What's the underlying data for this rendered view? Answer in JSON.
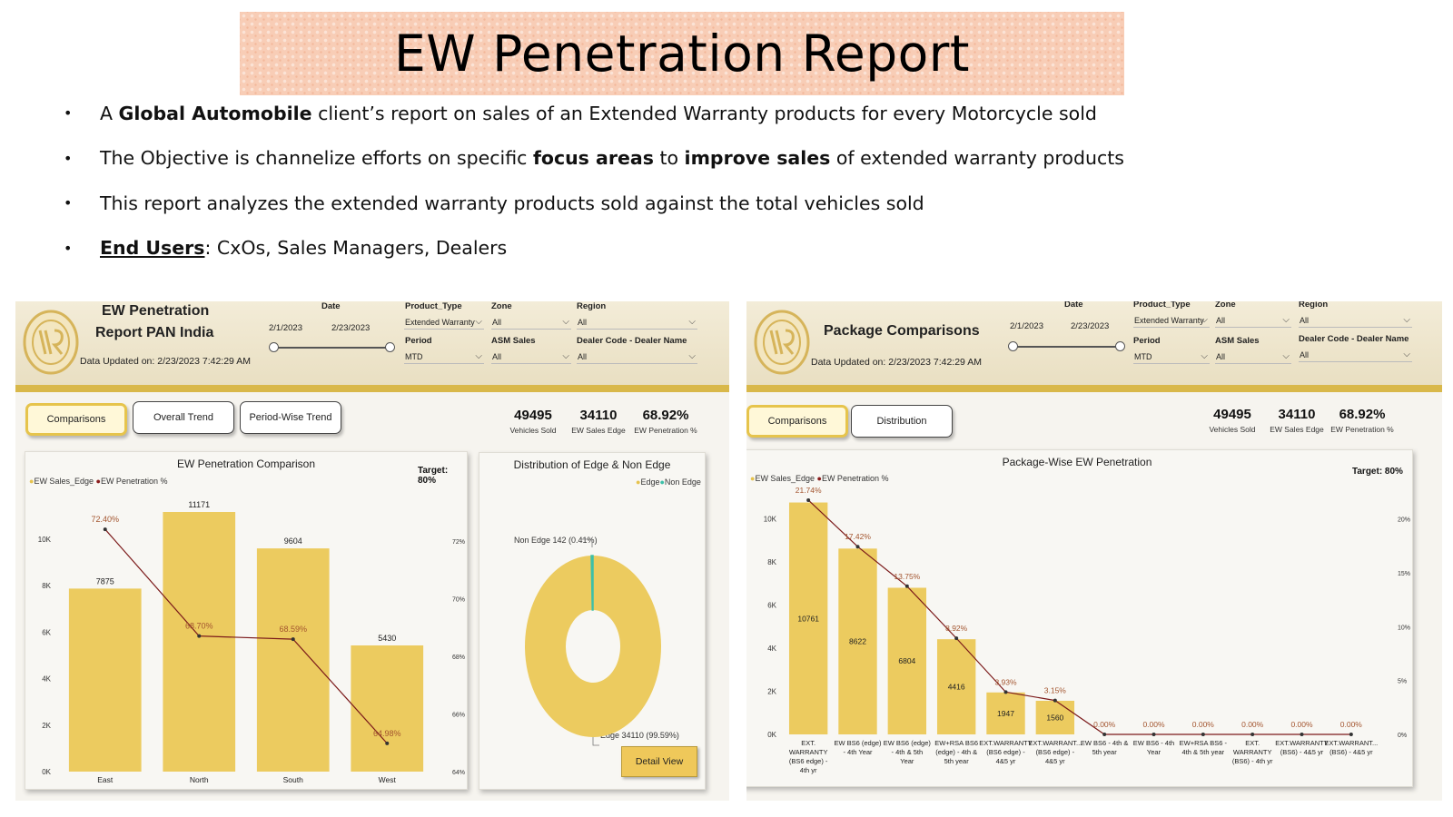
{
  "slide": {
    "title": "EW Penetration Report",
    "bullets": [
      {
        "pre": "A ",
        "bold1": "Global Automobile",
        "mid": " client’s report on sales of an Extended Warranty products for every Motorcycle sold",
        "bold2": "",
        "post": ""
      },
      {
        "pre": "The Objective is channelize efforts on specific ",
        "bold1": "focus areas",
        "mid": " to ",
        "bold2": "improve sales",
        "post": " of extended warranty products"
      },
      {
        "pre": "This report analyzes the extended warranty products sold against the total vehicles sold",
        "bold1": "",
        "mid": "",
        "bold2": "",
        "post": ""
      }
    ],
    "end_users_label": "End Users",
    "end_users_text": ": CxOs, Sales Managers, Dealers"
  },
  "filters": {
    "date_label": "Date",
    "date_start": "2/1/2023",
    "date_end": "2/23/2023",
    "product_type_label": "Product_Type",
    "product_type_value": "Extended Warranty",
    "zone_label": "Zone",
    "zone_value": "All",
    "region_label": "Region",
    "region_value": "All",
    "period_label": "Period",
    "period_value": "MTD",
    "asm_label": "ASM Sales",
    "asm_value": "All",
    "dealer_label": "Dealer Code - Dealer Name",
    "dealer_value": "All"
  },
  "left_dashboard": {
    "title_line1": "EW Penetration",
    "title_line2": "Report PAN India",
    "data_updated": "Data Updated on:  2/23/2023 7:42:29 AM",
    "tabs": [
      "Comparisons",
      "Overall Trend",
      "Period-Wise Trend"
    ],
    "kpis": [
      {
        "value": "49495",
        "label": "Vehicles Sold"
      },
      {
        "value": "34110",
        "label": "EW Sales Edge"
      },
      {
        "value": "68.92%",
        "label": "EW Penetration %"
      }
    ],
    "bar_title": "EW Penetration Comparison",
    "legend_bar": "EW Sales_Edge",
    "legend_line": "EW Penetration %",
    "target": "Target: 80%",
    "donut_title": "Distribution of Edge & Non Edge",
    "donut_legend_1": "Edge",
    "donut_legend_2": "Non Edge",
    "donut_label_nonedge": "Non Edge 142 (0.41%)",
    "donut_label_edge": "Edge 34110 (99.59%)",
    "detail_button": "Detail View"
  },
  "right_dashboard": {
    "title": "Package Comparisons",
    "data_updated": "Data Updated on:  2/23/2023 7:42:29 AM",
    "tabs": [
      "Comparisons",
      "Distribution"
    ],
    "kpis": [
      {
        "value": "49495",
        "label": "Vehicles Sold"
      },
      {
        "value": "34110",
        "label": "EW Sales Edge"
      },
      {
        "value": "68.92%",
        "label": "EW Penetration %"
      }
    ],
    "chart_title": "Package-Wise EW Penetration",
    "legend_bar": "EW Sales_Edge",
    "legend_line": "EW Penetration %",
    "target": "Target: 80%"
  },
  "chart_data": [
    {
      "type": "bar",
      "title": "EW Penetration Comparison",
      "categories": [
        "East",
        "North",
        "South",
        "West"
      ],
      "series": [
        {
          "name": "EW Sales_Edge",
          "values": [
            7875,
            11171,
            9604,
            5430
          ],
          "labels": [
            "7875",
            "11171",
            "9604",
            "5430"
          ],
          "color": "#eccb5f"
        },
        {
          "name": "EW Penetration %",
          "type": "line",
          "values": [
            72.4,
            68.7,
            68.59,
            64.98
          ],
          "labels": [
            "72.40%",
            "68.70%",
            "68.59%",
            "64.98%"
          ],
          "color": "#7b1a1a"
        }
      ],
      "ylim": [
        0,
        11171
      ],
      "y_ticks": [
        "0K",
        "2K",
        "4K",
        "6K",
        "8K",
        "10K"
      ],
      "y_tick_values": [
        0,
        2000,
        4000,
        6000,
        8000,
        10000
      ],
      "y2lim": [
        64,
        73
      ],
      "y2_ticks": [
        "64%",
        "66%",
        "68%",
        "70%",
        "72%"
      ],
      "y2_tick_values": [
        64,
        66,
        68,
        70,
        72
      ]
    },
    {
      "type": "pie",
      "title": "Distribution of Edge & Non Edge",
      "categories": [
        "Edge",
        "Non Edge"
      ],
      "values": [
        34110,
        142
      ],
      "colors": [
        "#eccb5f",
        "#3dc0a8"
      ]
    },
    {
      "type": "bar",
      "title": "Package-Wise EW Penetration",
      "categories": [
        [
          "EXT.",
          "WARRANTY",
          "(BS6 edge) -",
          "4th yr"
        ],
        [
          "EW BS6 (edge)",
          "- 4th Year"
        ],
        [
          "EW BS6 (edge)",
          "- 4th & 5th",
          "Year"
        ],
        [
          "EW+RSA BS6",
          "(edge) - 4th &",
          "5th year"
        ],
        [
          "EXT.WARRANTY",
          "(BS6 edge) -",
          "4&5 yr"
        ],
        [
          "EXT.WARRANT...",
          "(BS6 edge) -",
          "4&5 yr"
        ],
        [
          "EW BS6 - 4th &",
          "5th year"
        ],
        [
          "EW BS6 - 4th",
          "Year"
        ],
        [
          "EW+RSA BS6 -",
          "4th & 5th year"
        ],
        [
          "EXT.",
          "WARRANTY",
          "(BS6) - 4th yr"
        ],
        [
          "EXT.WARRANTY",
          "(BS6) - 4&5 yr"
        ],
        [
          "EXT.WARRANT...",
          "(BS6) - 4&5 yr"
        ]
      ],
      "series": [
        {
          "name": "EW Sales_Edge",
          "values": [
            10761,
            8622,
            6804,
            4416,
            1947,
            1560,
            0,
            0,
            0,
            0,
            0,
            0
          ],
          "labels": [
            "10761",
            "8622",
            "6804",
            "4416",
            "1947",
            "1560",
            "",
            "",
            "",
            "",
            "",
            ""
          ],
          "color": "#eccb5f"
        },
        {
          "name": "EW Penetration %",
          "type": "line",
          "values": [
            21.74,
            17.42,
            13.75,
            8.92,
            3.93,
            3.15,
            0,
            0,
            0,
            0,
            0,
            0
          ],
          "labels": [
            "21.74%",
            "17.42%",
            "13.75%",
            "8.92%",
            "3.93%",
            "3.15%",
            "0.00%",
            "0.00%",
            "0.00%",
            "0.00%",
            "0.00%",
            "0.00%"
          ],
          "color": "#7b1a1a"
        }
      ],
      "ylim": [
        0,
        11500
      ],
      "y_ticks": [
        "0K",
        "2K",
        "4K",
        "6K",
        "8K",
        "10K"
      ],
      "y_tick_values": [
        0,
        2000,
        4000,
        6000,
        8000,
        10000
      ],
      "y2lim": [
        0,
        23
      ],
      "y2_ticks": [
        "0%",
        "5%",
        "10%",
        "15%",
        "20%"
      ],
      "y2_tick_values": [
        0,
        5,
        10,
        15,
        20
      ]
    }
  ]
}
